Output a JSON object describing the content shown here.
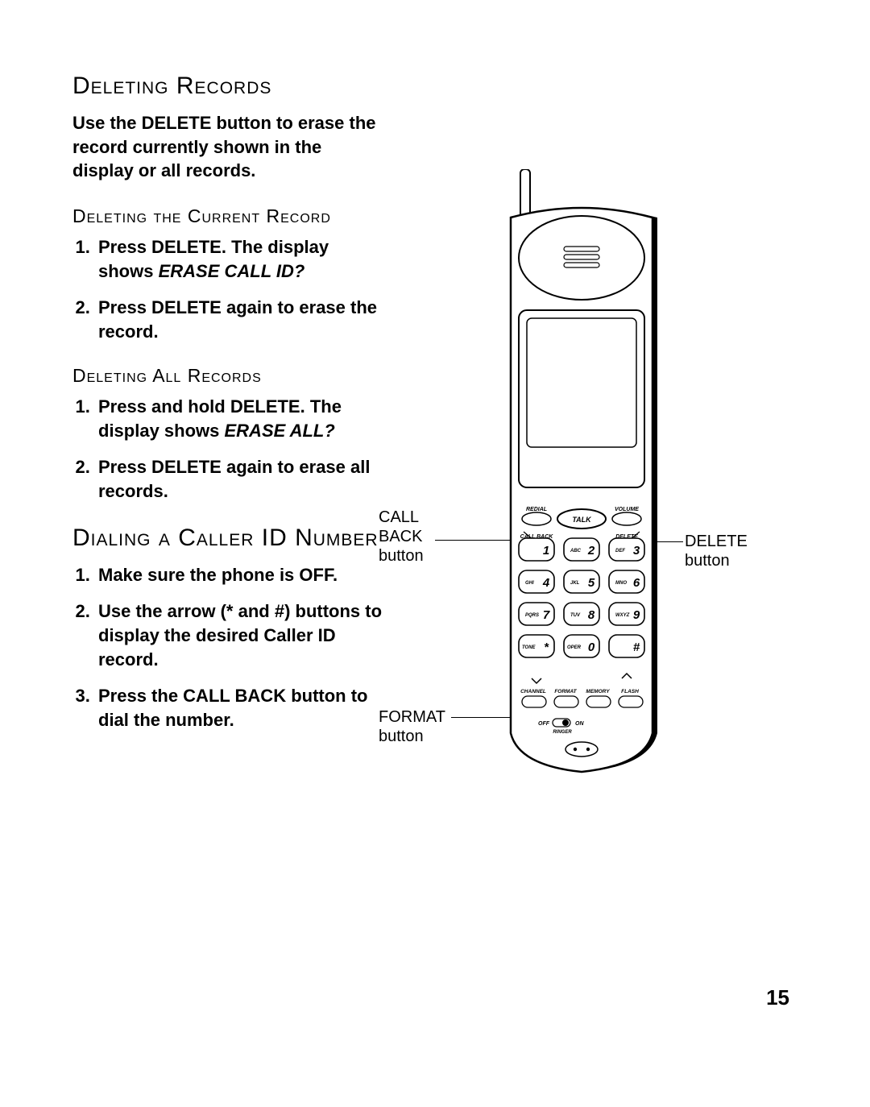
{
  "headings": {
    "deleting_records": "Deleting Records",
    "deleting_current": "Deleting the Current Record",
    "deleting_all": "Deleting All Records",
    "dialing_cid": "Dialing a Caller ID Number"
  },
  "intro": "Use the DELETE button to erase the record currently shown in the display or all records.",
  "steps_current": [
    "Press DELETE. The display shows ",
    "Press DELETE again to erase the record."
  ],
  "steps_current_em": "ERASE CALL ID?",
  "steps_all": [
    "Press and hold DELETE. The display shows ",
    "Press DELETE again to erase all records."
  ],
  "steps_all_em": "ERASE ALL?",
  "steps_dial": [
    "Make sure the phone is OFF.",
    "Use the arrow (* and #) buttons to display the desired Caller ID record.",
    "Press the CALL BACK button to dial the number."
  ],
  "callouts": {
    "callback": {
      "l1": "CALL",
      "l2": "BACK",
      "l3": "button"
    },
    "delete": {
      "l1": "DELETE",
      "l2": "button"
    },
    "format": {
      "l1": "FORMAT",
      "l2": "button"
    }
  },
  "phone_labels": {
    "redial": "REDIAL",
    "volume": "VOLUME",
    "talk": "TALK",
    "callback": "CALL BACK",
    "delete": "DELETE",
    "tone": "TONE",
    "oper": "OPER",
    "channel": "CHANNEL",
    "format": "FORMAT",
    "memory": "MEMORY",
    "flash": "FLASH",
    "off": "OFF",
    "on": "ON",
    "ringer": "RINGER",
    "keys": [
      [
        "",
        "1"
      ],
      [
        "ABC",
        "2"
      ],
      [
        "DEF",
        "3"
      ],
      [
        "GHI",
        "4"
      ],
      [
        "JKL",
        "5"
      ],
      [
        "MNO",
        "6"
      ],
      [
        "PQRS",
        "7"
      ],
      [
        "TUV",
        "8"
      ],
      [
        "WXYZ",
        "9"
      ],
      [
        "",
        "*"
      ],
      [
        "",
        "0"
      ],
      [
        "",
        "#"
      ]
    ]
  },
  "page_number": "15",
  "colors": {
    "fg": "#000000",
    "bg": "#ffffff"
  }
}
